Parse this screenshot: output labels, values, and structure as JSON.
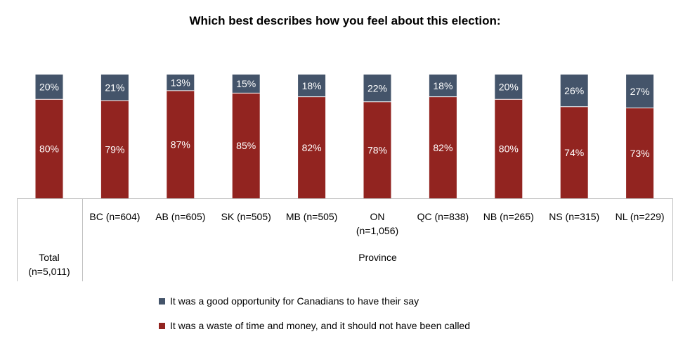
{
  "chart_data": {
    "type": "bar",
    "stacked": true,
    "title": "Which best describes how you feel about this election:",
    "categories": [
      "Total (n=5,011)",
      "BC (n=604)",
      "AB (n=605)",
      "SK (n=505)",
      "MB (n=505)",
      "ON (n=1,056)",
      "QC (n=838)",
      "NB (n=265)",
      "NS (n=315)",
      "NL (n=229)"
    ],
    "category_lines": [
      [
        "Total",
        "(n=5,011)"
      ],
      [
        "BC (n=604)"
      ],
      [
        "AB (n=605)"
      ],
      [
        "SK (n=505)"
      ],
      [
        "MB (n=505)"
      ],
      [
        "ON",
        "(n=1,056)"
      ],
      [
        "QC (n=838)"
      ],
      [
        "NB (n=265)"
      ],
      [
        "NS (n=315)"
      ],
      [
        "NL (n=229)"
      ]
    ],
    "group_label": "Province",
    "series": [
      {
        "name": "It was a waste of time and money, and it should not have been called",
        "values": [
          80,
          79,
          87,
          85,
          82,
          78,
          82,
          80,
          74,
          73
        ],
        "labels": [
          "80%",
          "79%",
          "87%",
          "85%",
          "82%",
          "78%",
          "82%",
          "80%",
          "74%",
          "73%"
        ]
      },
      {
        "name": "It was a good opportunity for Canadians to have their say",
        "values": [
          20,
          21,
          13,
          15,
          18,
          22,
          18,
          20,
          26,
          27
        ],
        "labels": [
          "20%",
          "21%",
          "13%",
          "15%",
          "18%",
          "22%",
          "18%",
          "20%",
          "26%",
          "27%"
        ]
      }
    ],
    "colors": {
      "waste": "#922420",
      "opportunity": "#44546A"
    },
    "ylim": [
      0,
      100
    ],
    "legend_position": "bottom"
  },
  "legend": {
    "opportunity_label": "It was a good opportunity for Canadians to have their say",
    "waste_label": "It was a waste of time and money, and it should not have been called"
  }
}
